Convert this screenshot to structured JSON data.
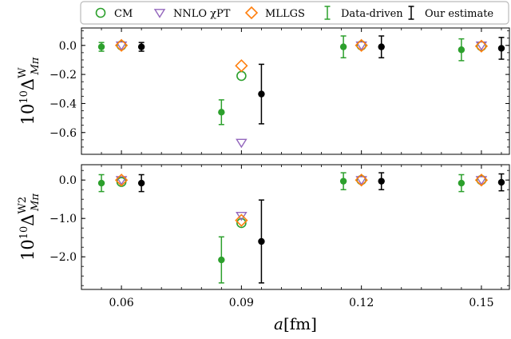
{
  "chart_data": {
    "type": "scatter",
    "x_ticks": [
      "0.06",
      "0.09",
      "0.12",
      "0.15"
    ],
    "xlabel": {
      "var": "a",
      "unit": "[fm]"
    },
    "legend": {
      "placement": "top",
      "entries": [
        {
          "key": "cm",
          "label": "CM",
          "marker": "open-circle",
          "color": "#2ca02c"
        },
        {
          "key": "nnlo",
          "label": "NNLO χPT",
          "marker": "open-triangle-down",
          "color": "#9467bd"
        },
        {
          "key": "mllgs",
          "label": "MLLGS",
          "marker": "open-diamond",
          "color": "#ff7f0e"
        },
        {
          "key": "dd",
          "label": "Data-driven",
          "marker": "errorbar",
          "color": "#2ca02c"
        },
        {
          "key": "est",
          "label": "Our estimate",
          "marker": "errorbar",
          "color": "#000000"
        }
      ]
    },
    "panels": [
      {
        "ylabel": {
          "base": "10",
          "exp": "10",
          "symbol": "Δ",
          "sup": "W",
          "sub": "Mπ"
        },
        "ylim": [
          -0.75,
          0.12
        ],
        "y_ticks": [
          "0.0",
          "−0.2",
          "−0.4",
          "−0.6"
        ],
        "series": [
          {
            "key": "cm",
            "points": [
              {
                "x": 0.06,
                "y": 0.0
              },
              {
                "x": 0.09,
                "y": -0.21
              },
              {
                "x": 0.12,
                "y": 0.0
              },
              {
                "x": 0.15,
                "y": -0.005
              }
            ]
          },
          {
            "key": "nnlo",
            "points": [
              {
                "x": 0.06,
                "y": 0.0
              },
              {
                "x": 0.09,
                "y": -0.67
              },
              {
                "x": 0.12,
                "y": 0.0
              },
              {
                "x": 0.15,
                "y": 0.0
              }
            ]
          },
          {
            "key": "mllgs",
            "points": [
              {
                "x": 0.06,
                "y": 0.0
              },
              {
                "x": 0.09,
                "y": -0.14
              },
              {
                "x": 0.12,
                "y": 0.0
              },
              {
                "x": 0.15,
                "y": -0.005
              }
            ]
          },
          {
            "key": "dd",
            "points": [
              {
                "x": 0.055,
                "y": -0.01,
                "err": 0.03
              },
              {
                "x": 0.085,
                "y": -0.46,
                "err": 0.085
              },
              {
                "x": 0.1155,
                "y": -0.01,
                "err": 0.075
              },
              {
                "x": 0.145,
                "y": -0.03,
                "err": 0.075
              }
            ]
          },
          {
            "key": "est",
            "points": [
              {
                "x": 0.065,
                "y": -0.01,
                "err": 0.03
              },
              {
                "x": 0.095,
                "y": -0.335,
                "err": 0.205
              },
              {
                "x": 0.125,
                "y": -0.01,
                "err": 0.075
              },
              {
                "x": 0.155,
                "y": -0.02,
                "err": 0.075
              }
            ]
          }
        ]
      },
      {
        "ylabel": {
          "base": "10",
          "exp": "10",
          "symbol": "Δ",
          "sup": "W2",
          "sub": "Mπ"
        },
        "ylim": [
          -2.85,
          0.4
        ],
        "y_ticks": [
          "0.0",
          "−1.0",
          "−2.0"
        ],
        "series": [
          {
            "key": "cm",
            "points": [
              {
                "x": 0.06,
                "y": -0.05
              },
              {
                "x": 0.09,
                "y": -1.12
              },
              {
                "x": 0.12,
                "y": 0.0
              },
              {
                "x": 0.15,
                "y": 0.0
              }
            ]
          },
          {
            "key": "nnlo",
            "points": [
              {
                "x": 0.06,
                "y": 0.0
              },
              {
                "x": 0.09,
                "y": -0.93
              },
              {
                "x": 0.12,
                "y": 0.0
              },
              {
                "x": 0.15,
                "y": 0.0
              }
            ]
          },
          {
            "key": "mllgs",
            "points": [
              {
                "x": 0.06,
                "y": 0.0
              },
              {
                "x": 0.09,
                "y": -1.05
              },
              {
                "x": 0.12,
                "y": 0.0
              },
              {
                "x": 0.15,
                "y": 0.0
              }
            ]
          },
          {
            "key": "dd",
            "points": [
              {
                "x": 0.055,
                "y": -0.08,
                "err": 0.22
              },
              {
                "x": 0.085,
                "y": -2.08,
                "err": 0.6
              },
              {
                "x": 0.1155,
                "y": -0.03,
                "err": 0.22
              },
              {
                "x": 0.145,
                "y": -0.08,
                "err": 0.22
              }
            ]
          },
          {
            "key": "est",
            "points": [
              {
                "x": 0.065,
                "y": -0.08,
                "err": 0.22
              },
              {
                "x": 0.095,
                "y": -1.6,
                "err": 1.08
              },
              {
                "x": 0.125,
                "y": -0.03,
                "err": 0.22
              },
              {
                "x": 0.155,
                "y": -0.06,
                "err": 0.22
              }
            ]
          }
        ]
      }
    ]
  }
}
